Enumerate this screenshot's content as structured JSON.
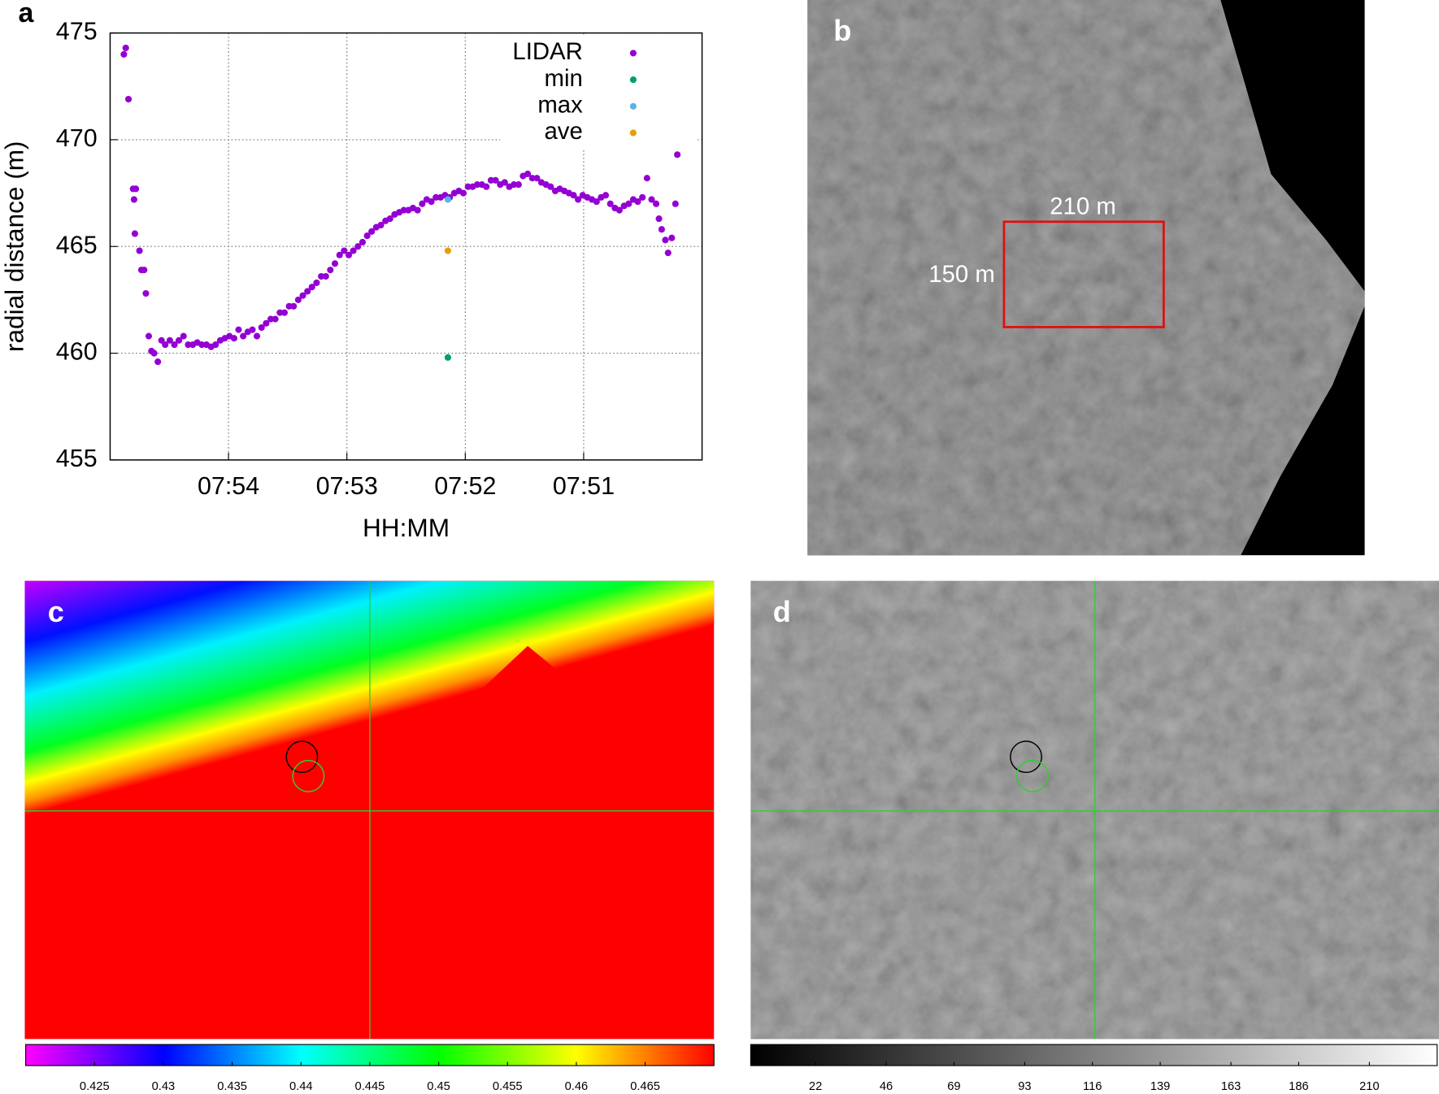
{
  "chart_data": [
    {
      "type": "scatter",
      "label": "a",
      "x_label": "HH:MM",
      "y_label": "radial distance (m)",
      "xlim": [
        475,
        470
      ],
      "xticks": [
        {
          "value": 474,
          "label": "07:54"
        },
        {
          "value": 473,
          "label": "07:53"
        },
        {
          "value": 472,
          "label": "07:52"
        },
        {
          "value": 471,
          "label": "07:51"
        }
      ],
      "ylim": [
        455,
        475
      ],
      "yticks": [
        455,
        460,
        465,
        470,
        475
      ],
      "grid": true,
      "legend": "upper right",
      "series": [
        {
          "name": "LIDAR",
          "color": "#9400d3",
          "x": [
            474.884,
            474.868,
            474.845,
            474.806,
            474.798,
            474.791,
            474.783,
            474.752,
            474.736,
            474.713,
            474.698,
            474.674,
            474.651,
            474.628,
            474.597,
            474.566,
            474.535,
            474.496,
            474.457,
            474.419,
            474.38,
            474.341,
            474.302,
            474.264,
            474.225,
            474.186,
            474.147,
            474.109,
            474.07,
            474.031,
            473.992,
            473.953,
            473.915,
            473.876,
            473.837,
            473.798,
            473.76,
            473.721,
            473.682,
            473.643,
            473.605,
            473.566,
            473.527,
            473.488,
            473.45,
            473.411,
            473.372,
            473.333,
            473.295,
            473.256,
            473.217,
            473.178,
            473.14,
            473.101,
            473.062,
            473.023,
            472.984,
            472.946,
            472.907,
            472.868,
            472.829,
            472.791,
            472.752,
            472.713,
            472.674,
            472.636,
            472.597,
            472.558,
            472.519,
            472.481,
            472.442,
            472.403,
            472.364,
            472.326,
            472.287,
            472.248,
            472.209,
            472.171,
            472.132,
            472.093,
            472.054,
            472.016,
            471.977,
            471.938,
            471.899,
            471.86,
            471.822,
            471.783,
            471.744,
            471.705,
            471.667,
            471.628,
            471.589,
            471.55,
            471.512,
            471.473,
            471.434,
            471.395,
            471.357,
            471.318,
            471.279,
            471.24,
            471.202,
            471.163,
            471.124,
            471.085,
            471.047,
            471.008,
            470.969,
            470.93,
            470.891,
            470.853,
            470.814,
            470.775,
            470.736,
            470.698,
            470.659,
            470.62,
            470.581,
            470.543,
            470.504,
            470.465,
            470.426,
            470.388,
            470.364,
            470.341,
            470.31,
            470.287,
            470.256,
            470.225,
            470.209
          ],
          "values": [
            474.0,
            474.3,
            471.9,
            467.7,
            467.2,
            465.6,
            467.7,
            464.8,
            463.9,
            463.9,
            462.8,
            460.8,
            460.1,
            460.0,
            459.6,
            460.6,
            460.4,
            460.6,
            460.4,
            460.6,
            460.8,
            460.4,
            460.4,
            460.5,
            460.4,
            460.4,
            460.3,
            460.4,
            460.6,
            460.7,
            460.8,
            460.7,
            461.1,
            460.8,
            461.0,
            461.1,
            460.8,
            461.2,
            461.4,
            461.6,
            461.6,
            461.9,
            461.9,
            462.2,
            462.2,
            462.5,
            462.7,
            462.9,
            463.1,
            463.3,
            463.6,
            463.6,
            463.9,
            464.2,
            464.6,
            464.8,
            464.6,
            464.8,
            465.0,
            465.2,
            465.5,
            465.7,
            465.9,
            466.0,
            466.2,
            466.3,
            466.5,
            466.6,
            466.7,
            466.7,
            466.8,
            466.7,
            467.0,
            467.2,
            467.1,
            467.3,
            467.3,
            467.4,
            467.3,
            467.5,
            467.6,
            467.5,
            467.8,
            467.8,
            467.9,
            467.9,
            467.8,
            468.1,
            468.1,
            467.9,
            468.0,
            467.8,
            467.9,
            467.9,
            468.3,
            468.4,
            468.2,
            468.2,
            468.0,
            467.9,
            467.8,
            467.6,
            467.7,
            467.6,
            467.5,
            467.4,
            467.2,
            467.4,
            467.3,
            467.2,
            467.1,
            467.3,
            467.4,
            467.0,
            466.8,
            466.7,
            466.9,
            467.0,
            467.2,
            467.1,
            467.3,
            468.2,
            467.2,
            467.0,
            466.3,
            465.8,
            465.3,
            464.7,
            465.4,
            467.0,
            469.3
          ]
        },
        {
          "name": "min",
          "color": "#009e73",
          "x": [
            472.147
          ],
          "values": [
            459.8
          ]
        },
        {
          "name": "max",
          "color": "#56b4e9",
          "x": [
            472.147
          ],
          "values": [
            467.2
          ]
        },
        {
          "name": "ave",
          "color": "#e69f00",
          "x": [
            472.147
          ],
          "values": [
            464.8
          ]
        }
      ]
    },
    {
      "type": "image",
      "label": "b",
      "annotations": [
        "210 m",
        "150 m"
      ]
    },
    {
      "type": "colorbar-image",
      "label": "c",
      "colormap": [
        "#ff00ff",
        "#0000ff",
        "#00ffff",
        "#00ff00",
        "#ffff00",
        "#ff0000"
      ],
      "xlim": [
        0.42,
        0.47
      ],
      "xticks": [
        0.425,
        0.43,
        0.435,
        0.44,
        0.445,
        0.45,
        0.455,
        0.46,
        0.465
      ]
    },
    {
      "type": "colorbar-image",
      "label": "d",
      "colormap": [
        "#000000",
        "#ffffff"
      ],
      "xlim": [
        0,
        233
      ],
      "xticks": [
        22,
        46,
        69,
        93,
        116,
        139,
        163,
        186,
        210
      ]
    }
  ]
}
